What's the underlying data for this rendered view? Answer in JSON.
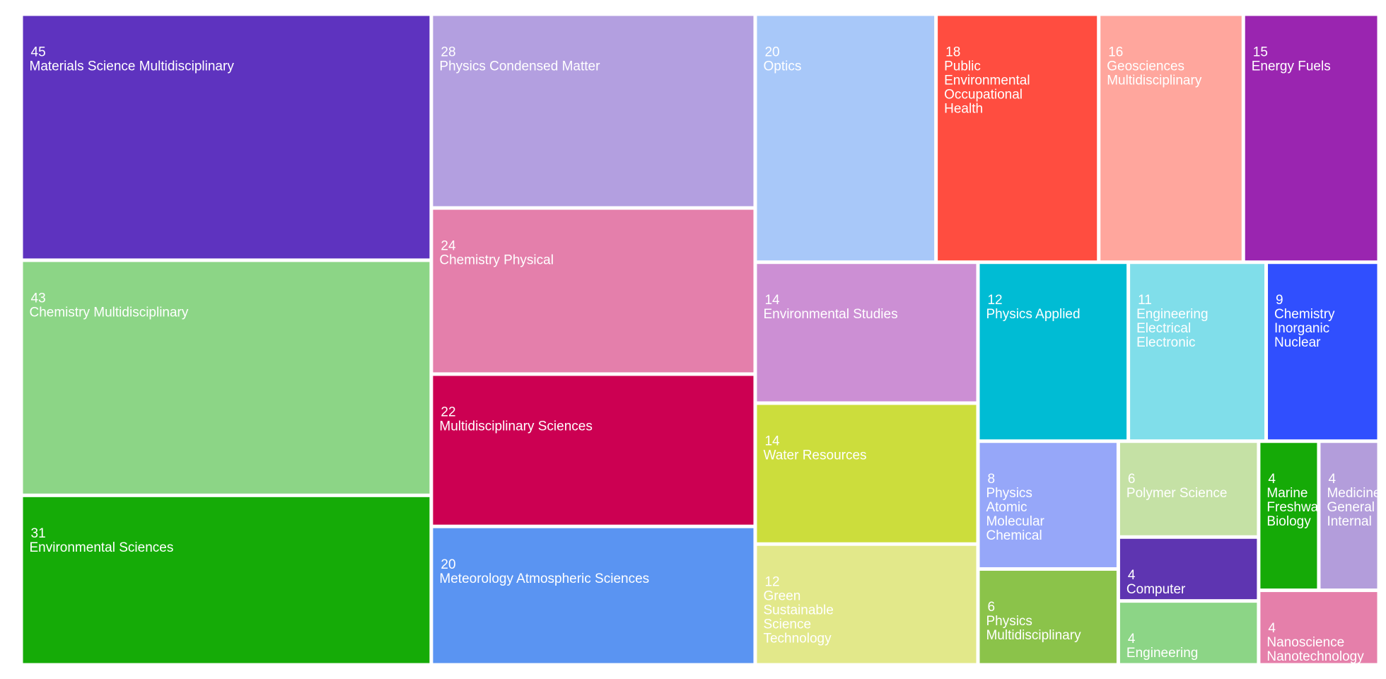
{
  "chart_data": {
    "type": "treemap",
    "categories": [
      "Materials Science Multidisciplinary",
      "Chemistry Multidisciplinary",
      "Environmental Sciences",
      "Physics Condensed Matter",
      "Chemistry Physical",
      "Multidisciplinary Sciences",
      "Meteorology Atmospheric Sciences",
      "Optics",
      "Public Environmental Occupational Health",
      "Geosciences Multidisciplinary",
      "Energy Fuels",
      "Environmental Studies",
      "Water Resources",
      "Green Sustainable Science Technology",
      "Physics Applied",
      "Engineering Electrical Electronic",
      "Chemistry Inorganic Nuclear",
      "Physics Atomic Molecular Chemical",
      "Physics Multidisciplinary",
      "Polymer Science",
      "Computer",
      "Engineering",
      "Marine Freshwater Biology",
      "Medicine General Internal",
      "Nanoscience Nanotechnology"
    ],
    "values": [
      45,
      43,
      31,
      28,
      24,
      22,
      20,
      20,
      18,
      16,
      15,
      14,
      14,
      12,
      12,
      11,
      9,
      8,
      6,
      6,
      4,
      4,
      4,
      4,
      4
    ],
    "colors": [
      "#5e33bf",
      "#8cd586",
      "#15ab07",
      "#b39fe0",
      "#e47fab",
      "#cc0052",
      "#5a94f2",
      "#a8c8f9",
      "#ff4d40",
      "#ffa69d",
      "#9a25b0",
      "#cc8fd4",
      "#ccdd3c",
      "#e2e88a",
      "#00bcd4",
      "#80deea",
      "#304ffe",
      "#96a7f9",
      "#8bc34a",
      "#c5e1a5",
      "#5e35b1",
      "#8cd586",
      "#15aa07",
      "#b39ddb",
      "#e57faa"
    ]
  }
}
